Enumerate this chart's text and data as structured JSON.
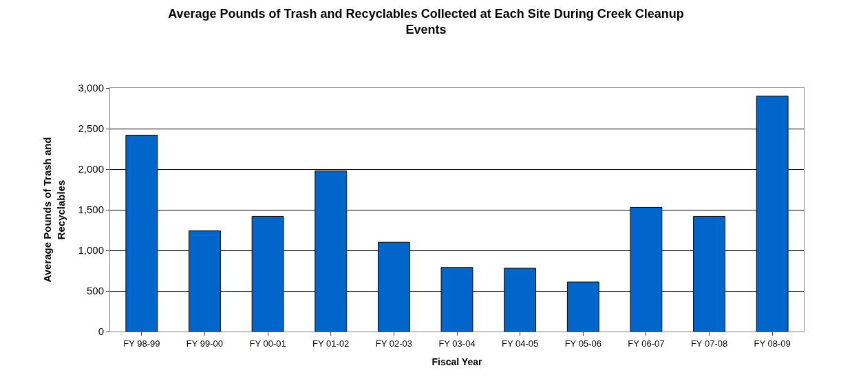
{
  "chart_data": {
    "type": "bar",
    "title": "Average Pounds of Trash and Recyclables Collected at Each Site During Creek Cleanup Events",
    "xlabel": "Fiscal Year",
    "ylabel": "Average Pounds of Trash and Recyclables",
    "categories": [
      "FY 98-99",
      "FY 99-00",
      "FY 00-01",
      "FY 01-02",
      "FY 02-03",
      "FY 03-04",
      "FY 04-05",
      "FY 05-06",
      "FY 06-07",
      "FY 07-08",
      "FY 08-09"
    ],
    "values": [
      2420,
      1240,
      1420,
      1980,
      1100,
      790,
      780,
      610,
      1530,
      1420,
      2900
    ],
    "color": "#0066cc",
    "ylim": [
      0,
      3000
    ],
    "yticks": [
      {
        "value": 0,
        "label": "0"
      },
      {
        "value": 500,
        "label": "500"
      },
      {
        "value": 1000,
        "label": "1,000"
      },
      {
        "value": 1500,
        "label": "1,500"
      },
      {
        "value": 2000,
        "label": "2,000"
      },
      {
        "value": 2500,
        "label": "2,500"
      },
      {
        "value": 3000,
        "label": "3,000"
      }
    ],
    "grid": "y"
  }
}
